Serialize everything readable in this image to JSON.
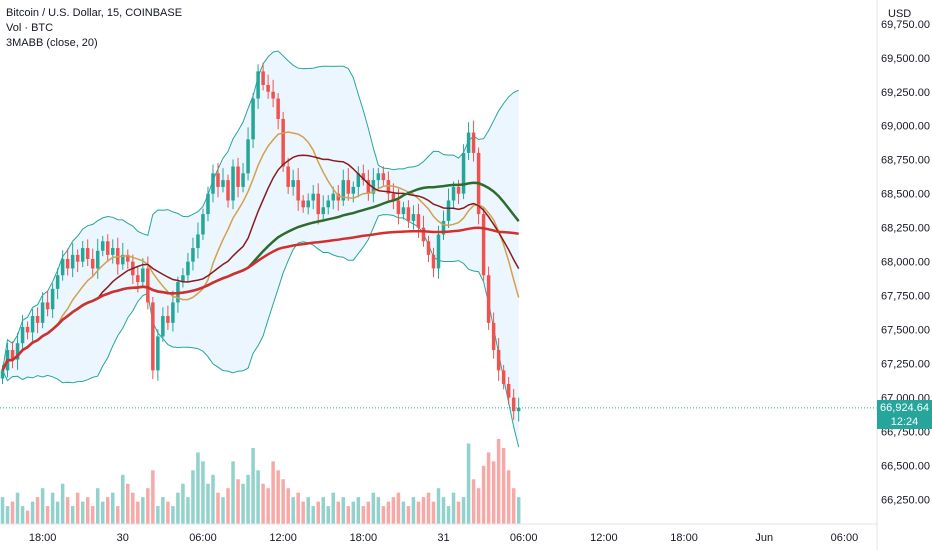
{
  "legend": {
    "symbol": "Bitcoin / U.S. Dollar, 15, COINBASE",
    "volume": "Vol · BTC",
    "indicator": "3MABB (close, 20)"
  },
  "axis": {
    "currency": "USD"
  },
  "last_price": {
    "value": "66,924.64",
    "countdown": "12:24",
    "numeric": 66924.64
  },
  "colors": {
    "up": "#26a69a",
    "down": "#ef5350",
    "band_fill": "#e3f2fd",
    "band_line": "#26a69a",
    "ma_fast": "#8b1a1a",
    "ma_mid": "#d4a04c",
    "ma_slow": "#2e6b2e",
    "ma_long": "#d32f2f"
  },
  "chart_data": {
    "type": "candlestick",
    "y_ticks": [
      "69,750.00",
      "69,500.00",
      "69,250.00",
      "69,000.00",
      "68,750.00",
      "68,500.00",
      "68,250.00",
      "68,000.00",
      "67,750.00",
      "67,500.00",
      "67,250.00",
      "67,000.00",
      "66,750.00",
      "66,500.00",
      "66,250.00"
    ],
    "y_tick_values": [
      69750,
      69500,
      69250,
      69000,
      68750,
      68500,
      68250,
      68000,
      67750,
      67500,
      67250,
      67000,
      66750,
      66500,
      66250
    ],
    "ylim": [
      66070,
      69925
    ],
    "x_ticks": [
      "18:00",
      "30",
      "06:00",
      "12:00",
      "18:00",
      "31",
      "06:00",
      "12:00",
      "18:00",
      "Jun",
      "06:00"
    ],
    "x_tick_index": [
      8,
      24,
      40,
      56,
      72,
      88,
      104,
      120,
      136,
      152,
      168
    ],
    "n_slots": 175,
    "closes": [
      67200,
      67350,
      67280,
      67400,
      67520,
      67480,
      67600,
      67550,
      67700,
      67650,
      67800,
      67900,
      68020,
      67950,
      68050,
      68000,
      68100,
      68020,
      67950,
      68080,
      68150,
      68050,
      68100,
      67980,
      68050,
      68000,
      67900,
      67850,
      67950,
      67700,
      67200,
      67450,
      67600,
      67550,
      67700,
      67850,
      67900,
      68000,
      68100,
      68200,
      68350,
      68500,
      68650,
      68550,
      68600,
      68450,
      68700,
      68550,
      68650,
      68900,
      69200,
      69400,
      69300,
      69250,
      69200,
      69050,
      68700,
      68550,
      68600,
      68450,
      68400,
      68450,
      68500,
      68350,
      68400,
      68450,
      68500,
      68450,
      68600,
      68500,
      68550,
      68650,
      68600,
      68500,
      68600,
      68650,
      68600,
      68500,
      68450,
      68350,
      68400,
      68300,
      68350,
      68250,
      68150,
      68050,
      67950,
      68200,
      68300,
      68450,
      68550,
      68500,
      68800,
      68950,
      68800,
      68350,
      67900,
      67550,
      67350,
      67200,
      67100,
      67000,
      66900,
      66924
    ],
    "volumes": [
      30,
      20,
      25,
      35,
      20,
      15,
      25,
      30,
      40,
      20,
      35,
      25,
      45,
      30,
      20,
      35,
      25,
      30,
      20,
      40,
      25,
      30,
      35,
      20,
      55,
      45,
      35,
      25,
      30,
      40,
      60,
      20,
      30,
      25,
      20,
      35,
      45,
      30,
      60,
      80,
      70,
      45,
      55,
      35,
      30,
      40,
      70,
      50,
      45,
      55,
      85,
      60,
      45,
      40,
      70,
      60,
      50,
      40,
      30,
      35,
      25,
      30,
      20,
      25,
      30,
      20,
      35,
      25,
      30,
      20,
      25,
      30,
      20,
      25,
      35,
      30,
      20,
      25,
      30,
      35,
      25,
      20,
      30,
      25,
      30,
      35,
      25,
      40,
      30,
      20,
      35,
      25,
      30,
      90,
      50,
      40,
      65,
      80,
      70,
      95,
      85,
      60,
      40,
      30
    ]
  }
}
